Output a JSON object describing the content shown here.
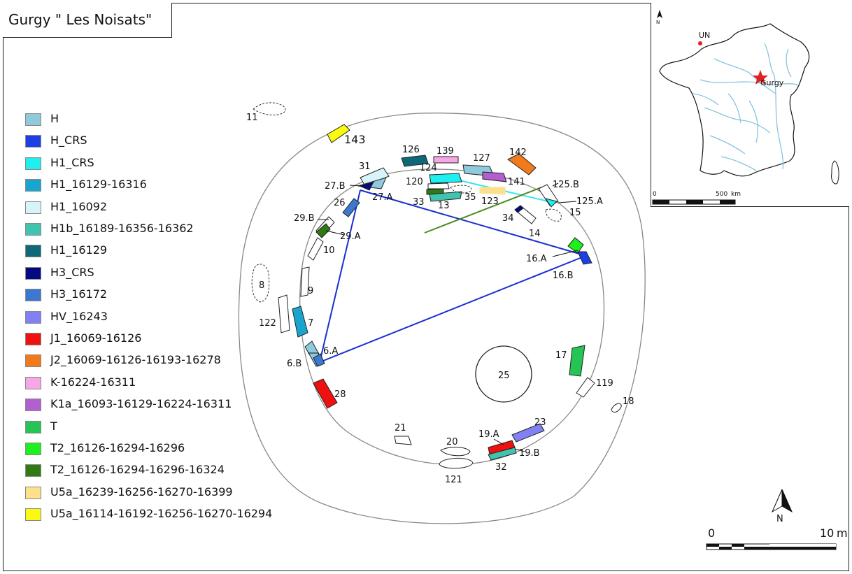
{
  "title": "Gurgy \" Les Noisats\"",
  "legend": [
    {
      "label": "H",
      "color": "#8fc9dc"
    },
    {
      "label": "H_CRS",
      "color": "#1d3fe6"
    },
    {
      "label": "H1_CRS",
      "color": "#1ef0f0"
    },
    {
      "label": "H1_16129-16316",
      "color": "#1aa5cf"
    },
    {
      "label": "H1_16092",
      "color": "#d9f3fa"
    },
    {
      "label": "H1b_16189-16356-16362",
      "color": "#40c4ad"
    },
    {
      "label": "H1_16129",
      "color": "#0f6878"
    },
    {
      "label": "H3_CRS",
      "color": "#050a80"
    },
    {
      "label": "H3_16172",
      "color": "#3c78d0"
    },
    {
      "label": "HV_16243",
      "color": "#8181f5"
    },
    {
      "label": "J1_16069-16126",
      "color": "#ef1010"
    },
    {
      "label": "J2_16069-16126-16193-16278",
      "color": "#f07a1c"
    },
    {
      "label": "K-16224-16311",
      "color": "#f6a8e6"
    },
    {
      "label": "K1a_16093-16129-16224-16311",
      "color": "#b45fd0"
    },
    {
      "label": "T",
      "color": "#24c455"
    },
    {
      "label": "T2_16126-16294-16296",
      "color": "#1ef01e"
    },
    {
      "label": "T2_16126-16294-16296-16324",
      "color": "#2f7a14"
    },
    {
      "label": "U5a_16239-16256-16270-16399",
      "color": "#fde08c"
    },
    {
      "label": "U5a_16114-16192-16256-16270-16294",
      "color": "#fafa10"
    }
  ],
  "graves": {
    "g11": "11",
    "g143": "143",
    "g126": "126",
    "g139": "139",
    "g127": "127",
    "g142": "142",
    "g31": "31",
    "g27b": "27.B",
    "g27a": "27.A",
    "g124": "124",
    "g120": "120",
    "g141": "141",
    "g125b": "125.B",
    "g125a": "125.A",
    "g35": "35",
    "g123": "123",
    "g33": "33",
    "g13": "13",
    "g15": "15",
    "g26": "26",
    "g34": "34",
    "g14": "14",
    "g29b": "29.B",
    "g29a": "29.A",
    "g10": "10",
    "g16a": "16.A",
    "g16b": "16.B",
    "g8": "8",
    "g9": "9",
    "g122": "122",
    "g7": "7",
    "g6a": "6.A",
    "g6b": "6.B",
    "g25": "25",
    "g17": "17",
    "g119": "119",
    "g28": "28",
    "g18": "18",
    "g23": "23",
    "g19a": "19.A",
    "g19b": "19.B",
    "g21": "21",
    "g20": "20",
    "g121": "121",
    "g32": "32"
  },
  "north_label": "N",
  "scale": {
    "zero": "0",
    "max": "10",
    "unit": "m"
  },
  "inset": {
    "north": "N",
    "un_label": "UN",
    "gurgy_label": "Gurgy",
    "scale_zero": "0",
    "scale_max": "500",
    "scale_unit": "km"
  },
  "colors": {
    "link_blue": "#1a2fd0",
    "link_cyan": "#33e6f0",
    "link_green": "#4b8a1a",
    "river": "#8ac4de",
    "star": "#e32020"
  }
}
